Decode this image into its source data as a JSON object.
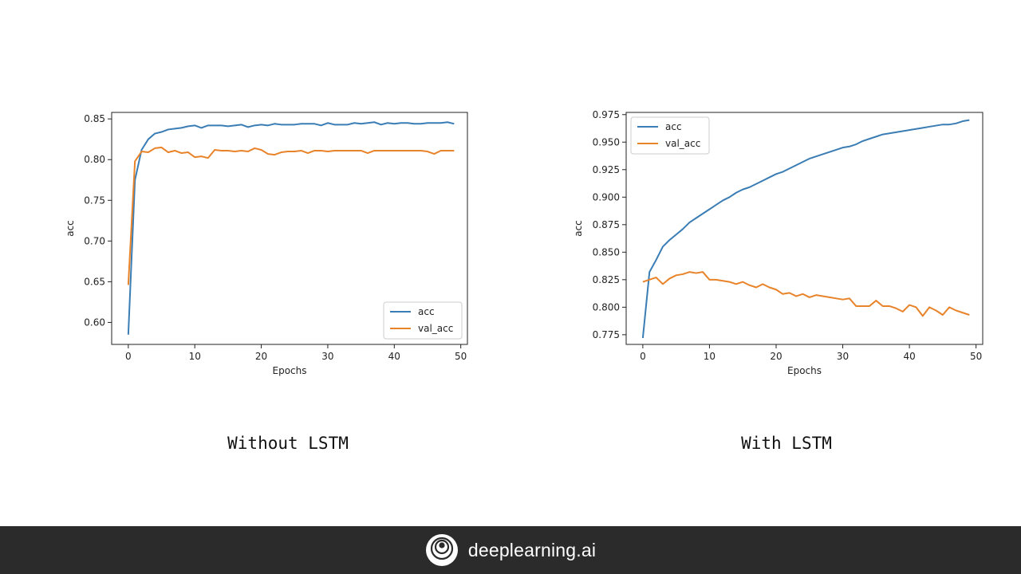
{
  "colors": {
    "acc": "#3a7db5",
    "val_acc": "#e8832a",
    "footer_bg": "#2b2b2b"
  },
  "captions": {
    "left": "Without LSTM",
    "right": "With LSTM"
  },
  "footer": {
    "brand": "deeplearning.ai",
    "logo_icon": "deeplearning-logo-icon"
  },
  "chart_data": [
    {
      "type": "line",
      "xlabel": "Epochs",
      "ylabel": "acc",
      "xlim": [
        -2.5,
        51
      ],
      "ylim": [
        0.573,
        0.858
      ],
      "xticks": [
        0,
        10,
        20,
        30,
        40,
        50
      ],
      "yticks": [
        0.6,
        0.65,
        0.7,
        0.75,
        0.8,
        0.85
      ],
      "ytick_labels": [
        "0.60",
        "0.65",
        "0.70",
        "0.75",
        "0.80",
        "0.85"
      ],
      "legend_position": "bottom-right",
      "grid": false,
      "x": [
        0,
        1,
        2,
        3,
        4,
        5,
        6,
        7,
        8,
        9,
        10,
        11,
        12,
        13,
        14,
        15,
        16,
        17,
        18,
        19,
        20,
        21,
        22,
        23,
        24,
        25,
        26,
        27,
        28,
        29,
        30,
        31,
        32,
        33,
        34,
        35,
        36,
        37,
        38,
        39,
        40,
        41,
        42,
        43,
        44,
        45,
        46,
        47,
        48,
        49
      ],
      "series": [
        {
          "name": "acc",
          "values": [
            0.585,
            0.775,
            0.812,
            0.825,
            0.832,
            0.834,
            0.837,
            0.838,
            0.839,
            0.841,
            0.842,
            0.839,
            0.842,
            0.842,
            0.842,
            0.841,
            0.842,
            0.843,
            0.84,
            0.842,
            0.843,
            0.842,
            0.844,
            0.843,
            0.843,
            0.843,
            0.844,
            0.844,
            0.844,
            0.842,
            0.845,
            0.843,
            0.843,
            0.843,
            0.845,
            0.844,
            0.845,
            0.846,
            0.843,
            0.845,
            0.844,
            0.845,
            0.845,
            0.844,
            0.844,
            0.845,
            0.845,
            0.845,
            0.846,
            0.844
          ]
        },
        {
          "name": "val_acc",
          "values": [
            0.646,
            0.798,
            0.81,
            0.809,
            0.814,
            0.815,
            0.809,
            0.811,
            0.808,
            0.809,
            0.803,
            0.804,
            0.802,
            0.812,
            0.811,
            0.811,
            0.81,
            0.811,
            0.81,
            0.814,
            0.812,
            0.807,
            0.806,
            0.809,
            0.81,
            0.81,
            0.811,
            0.808,
            0.811,
            0.811,
            0.81,
            0.811,
            0.811,
            0.811,
            0.811,
            0.811,
            0.808,
            0.811,
            0.811,
            0.811,
            0.811,
            0.811,
            0.811,
            0.811,
            0.811,
            0.81,
            0.807,
            0.811,
            0.811,
            0.811
          ]
        }
      ]
    },
    {
      "type": "line",
      "xlabel": "Epochs",
      "ylabel": "acc",
      "xlim": [
        -2.5,
        51
      ],
      "ylim": [
        0.7662,
        0.977
      ],
      "xticks": [
        0,
        10,
        20,
        30,
        40,
        50
      ],
      "yticks": [
        0.775,
        0.8,
        0.825,
        0.85,
        0.875,
        0.9,
        0.925,
        0.95,
        0.975
      ],
      "ytick_labels": [
        "0.775",
        "0.800",
        "0.825",
        "0.850",
        "0.875",
        "0.900",
        "0.925",
        "0.950",
        "0.975"
      ],
      "legend_position": "top-left",
      "grid": false,
      "x": [
        0,
        1,
        2,
        3,
        4,
        5,
        6,
        7,
        8,
        9,
        10,
        11,
        12,
        13,
        14,
        15,
        16,
        17,
        18,
        19,
        20,
        21,
        22,
        23,
        24,
        25,
        26,
        27,
        28,
        29,
        30,
        31,
        32,
        33,
        34,
        35,
        36,
        37,
        38,
        39,
        40,
        41,
        42,
        43,
        44,
        45,
        46,
        47,
        48,
        49
      ],
      "series": [
        {
          "name": "acc",
          "values": [
            0.772,
            0.832,
            0.843,
            0.855,
            0.861,
            0.866,
            0.871,
            0.877,
            0.881,
            0.885,
            0.889,
            0.893,
            0.897,
            0.9,
            0.904,
            0.907,
            0.909,
            0.912,
            0.915,
            0.918,
            0.921,
            0.923,
            0.926,
            0.929,
            0.932,
            0.935,
            0.937,
            0.939,
            0.941,
            0.943,
            0.945,
            0.946,
            0.948,
            0.951,
            0.953,
            0.955,
            0.957,
            0.958,
            0.959,
            0.96,
            0.961,
            0.962,
            0.963,
            0.964,
            0.965,
            0.966,
            0.966,
            0.967,
            0.969,
            0.97
          ]
        },
        {
          "name": "val_acc",
          "values": [
            0.823,
            0.825,
            0.827,
            0.821,
            0.826,
            0.829,
            0.83,
            0.832,
            0.831,
            0.832,
            0.825,
            0.825,
            0.824,
            0.823,
            0.821,
            0.823,
            0.82,
            0.818,
            0.821,
            0.818,
            0.816,
            0.812,
            0.813,
            0.81,
            0.812,
            0.809,
            0.811,
            0.81,
            0.809,
            0.808,
            0.807,
            0.808,
            0.801,
            0.801,
            0.801,
            0.806,
            0.801,
            0.801,
            0.799,
            0.796,
            0.802,
            0.8,
            0.792,
            0.8,
            0.797,
            0.793,
            0.8,
            0.797,
            0.795,
            0.793
          ]
        }
      ]
    }
  ]
}
